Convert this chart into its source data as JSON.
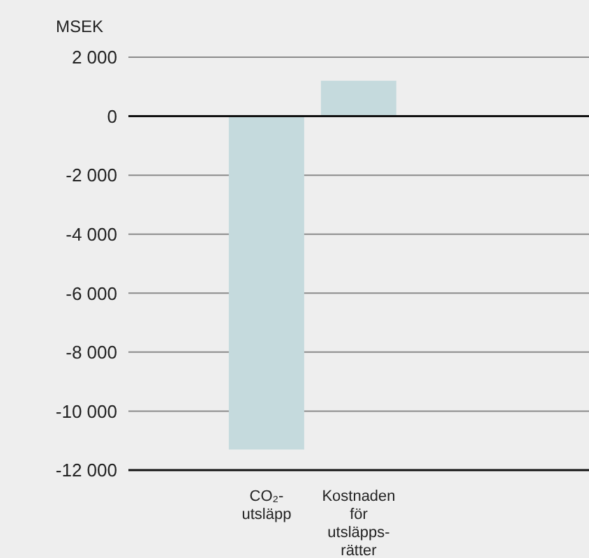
{
  "chart_data": {
    "type": "bar",
    "ylabel": "MSEK",
    "categories": [
      null,
      "CO₂-utsläpp",
      "Kostnaden för utsläpps-rätter",
      null,
      null
    ],
    "values": [
      null,
      -11300,
      1200,
      null,
      null
    ],
    "color": "#c5dadd",
    "ylim": [
      -12000,
      2000
    ],
    "yticks": [
      {
        "value": -12000,
        "label": "-12 000"
      },
      {
        "value": -10000,
        "label": "-10 000"
      },
      {
        "value": -8000,
        "label": "-8 000"
      },
      {
        "value": -6000,
        "label": "-6 000"
      },
      {
        "value": -4000,
        "label": "-4 000"
      },
      {
        "value": -2000,
        "label": "-2 000"
      },
      {
        "value": 0,
        "label": "0"
      },
      {
        "value": 2000,
        "label": "2 000"
      }
    ],
    "grid": "y",
    "legend": false
  }
}
